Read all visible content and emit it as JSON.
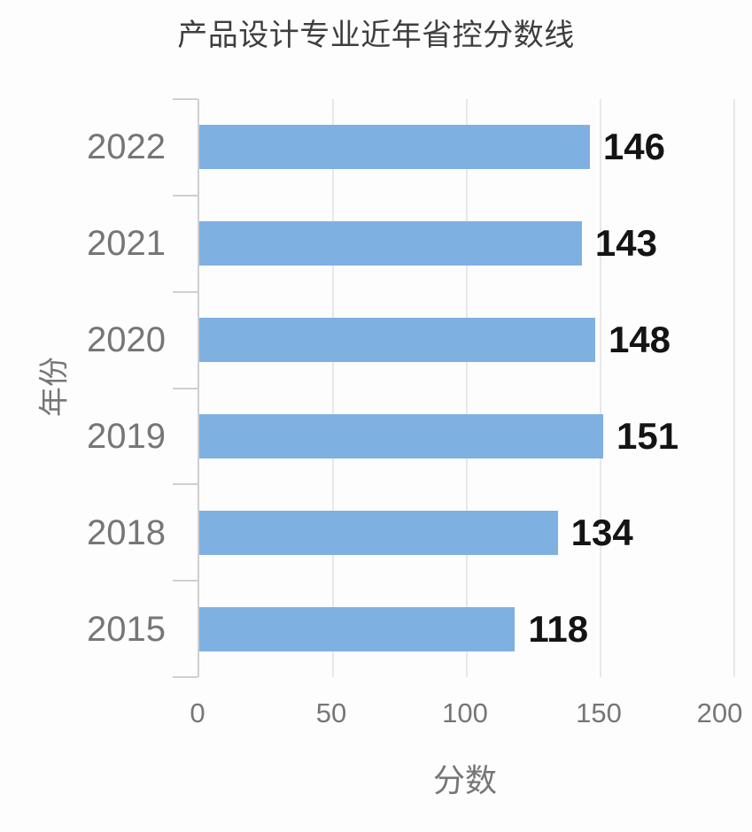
{
  "chart_data": {
    "type": "bar",
    "orientation": "horizontal",
    "title": "产品设计专业近年省控分数线",
    "xlabel": "分数",
    "ylabel": "年份",
    "categories": [
      "2022",
      "2021",
      "2020",
      "2019",
      "2018",
      "2015"
    ],
    "values": [
      146,
      143,
      148,
      151,
      134,
      118
    ],
    "xlim": [
      0,
      200
    ],
    "xticks": [
      0,
      50,
      100,
      150,
      200
    ],
    "grid": true,
    "legend": "none",
    "bar_color": "#7fb0e2",
    "value_label_color": "#141414",
    "axis_text_color": "#767676",
    "title_color": "#3e3e3e"
  }
}
